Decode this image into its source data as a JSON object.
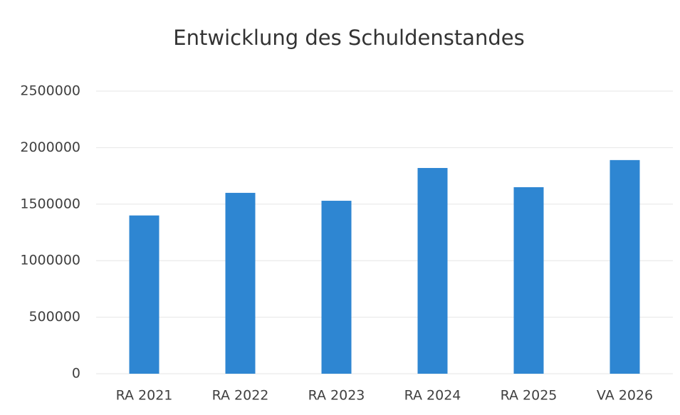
{
  "chart_data": {
    "type": "bar",
    "title": "Entwicklung des Schuldenstandes",
    "categories": [
      "RA 2021",
      "RA 2022",
      "RA 2023",
      "RA 2024",
      "RA 2025",
      "VA 2026"
    ],
    "values": [
      1400000,
      1600000,
      1530000,
      1820000,
      1650000,
      1890000
    ],
    "color": "#2e86d2",
    "ylim": [
      0,
      2500000
    ],
    "yticks": [
      0,
      500000,
      1000000,
      1500000,
      2000000,
      2500000
    ],
    "grid": true
  }
}
